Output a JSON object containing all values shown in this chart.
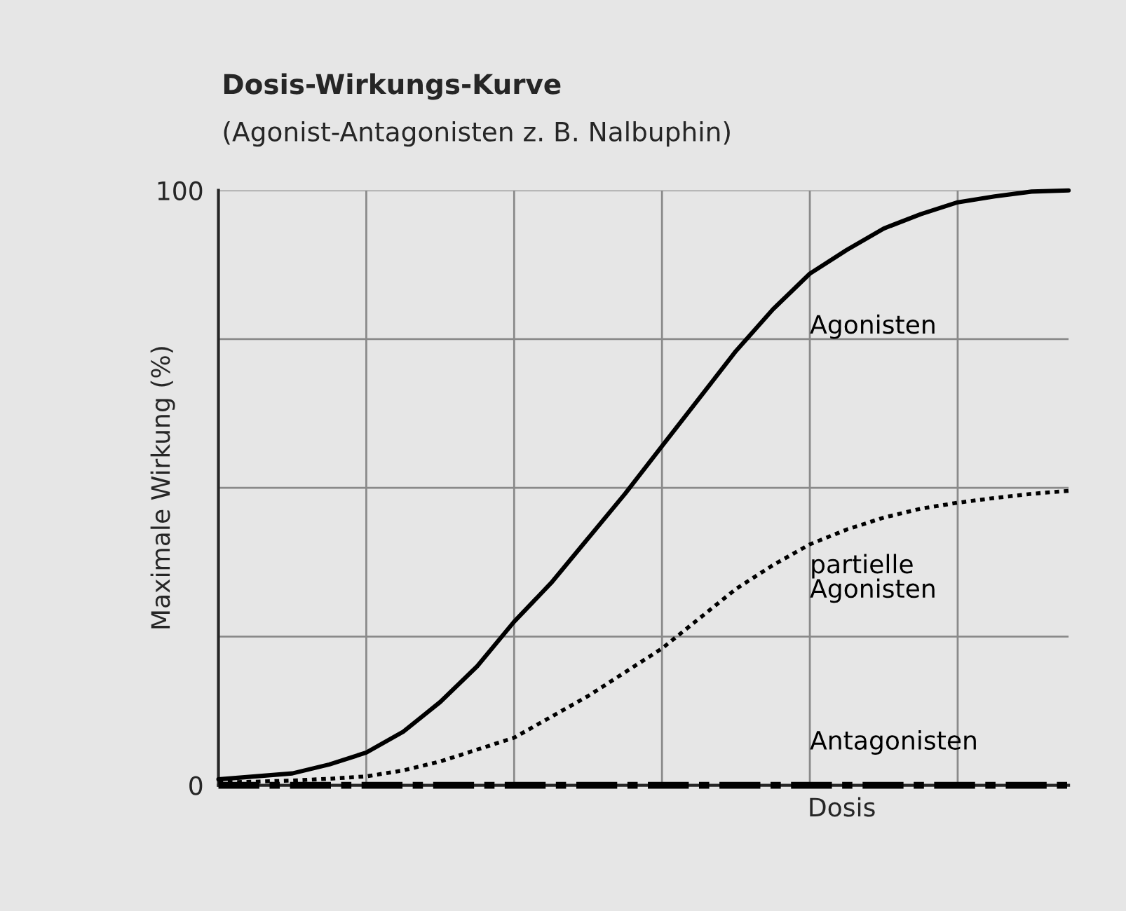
{
  "chart_data": {
    "type": "line",
    "title": "Dosis-Wirkungs-Kurve",
    "subtitle": "(Agonist-Antagonisten z. B. Nalbuphin)",
    "xlabel": "Dosis",
    "ylabel": "Maximale Wirkung (%)",
    "categories": [
      null,
      null,
      null,
      null,
      null,
      null,
      null,
      null,
      null,
      null,
      null,
      null,
      null,
      null,
      null,
      null,
      null,
      null,
      null,
      null,
      null,
      null,
      null,
      null
    ],
    "series": [
      {
        "name": "Agonisten",
        "color": "#000000",
        "line_style": "solid",
        "values": [
          1,
          1.5,
          2,
          3.5,
          5.5,
          9,
          14,
          20,
          27.5,
          34,
          41.5,
          49,
          57,
          65,
          73,
          80,
          86,
          90,
          93.6,
          96,
          98,
          99,
          99.8,
          100
        ]
      },
      {
        "name": "partielle\nAgonisten",
        "color": "#000000",
        "line_style": "dotted",
        "values": [
          0.5,
          0.6,
          0.8,
          1.1,
          1.5,
          2.5,
          4,
          6,
          8,
          11.5,
          15,
          19,
          23,
          28,
          33,
          37,
          40.5,
          43,
          45,
          46.5,
          47.5,
          48.3,
          49,
          49.5
        ]
      },
      {
        "name": "Antagonisten",
        "color": "#000000",
        "line_style": "dashed",
        "values": [
          0,
          0,
          0,
          0,
          0,
          0,
          0,
          0,
          0,
          0,
          0,
          0,
          0,
          0,
          0,
          0,
          0,
          0,
          0,
          0,
          0,
          0,
          0,
          0
        ]
      }
    ],
    "ylim": [
      0,
      100
    ],
    "yticks": [
      0,
      {
        "value": 25,
        "label": null
      },
      {
        "value": 50,
        "label": null
      },
      {
        "value": 75,
        "label": null
      },
      100
    ],
    "grid": true,
    "legend": false
  }
}
